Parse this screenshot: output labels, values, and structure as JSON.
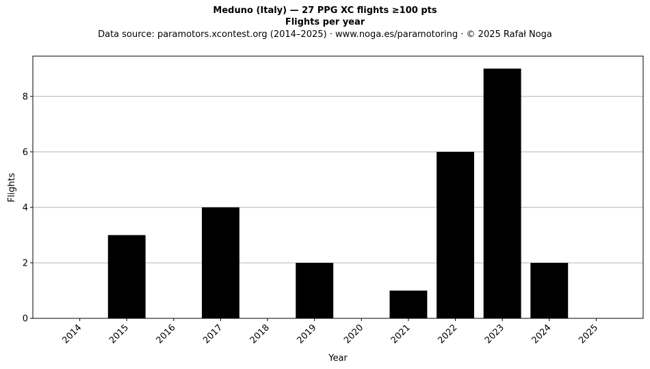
{
  "chart_data": {
    "type": "bar",
    "title": "Meduno (Italy)  —  27 PPG XC flights ≥100 pts",
    "subtitle": "Flights per year",
    "source": "Data source: paramotors.xcontest.org (2014–2025)  ·  www.noga.es/paramotoring  ·  © 2025 Rafał Noga",
    "xlabel": "Year",
    "ylabel": "Flights",
    "categories": [
      "2014",
      "2015",
      "2016",
      "2017",
      "2018",
      "2019",
      "2020",
      "2021",
      "2022",
      "2023",
      "2024",
      "2025"
    ],
    "values": [
      0,
      3,
      0,
      4,
      0,
      2,
      0,
      1,
      6,
      9,
      2,
      0
    ],
    "ylim": [
      0,
      9.45
    ],
    "yticks": [
      0,
      2,
      4,
      6,
      8
    ],
    "grid": "horizontal",
    "bar_color": "#000000",
    "grid_color": "#b0b0b0"
  }
}
